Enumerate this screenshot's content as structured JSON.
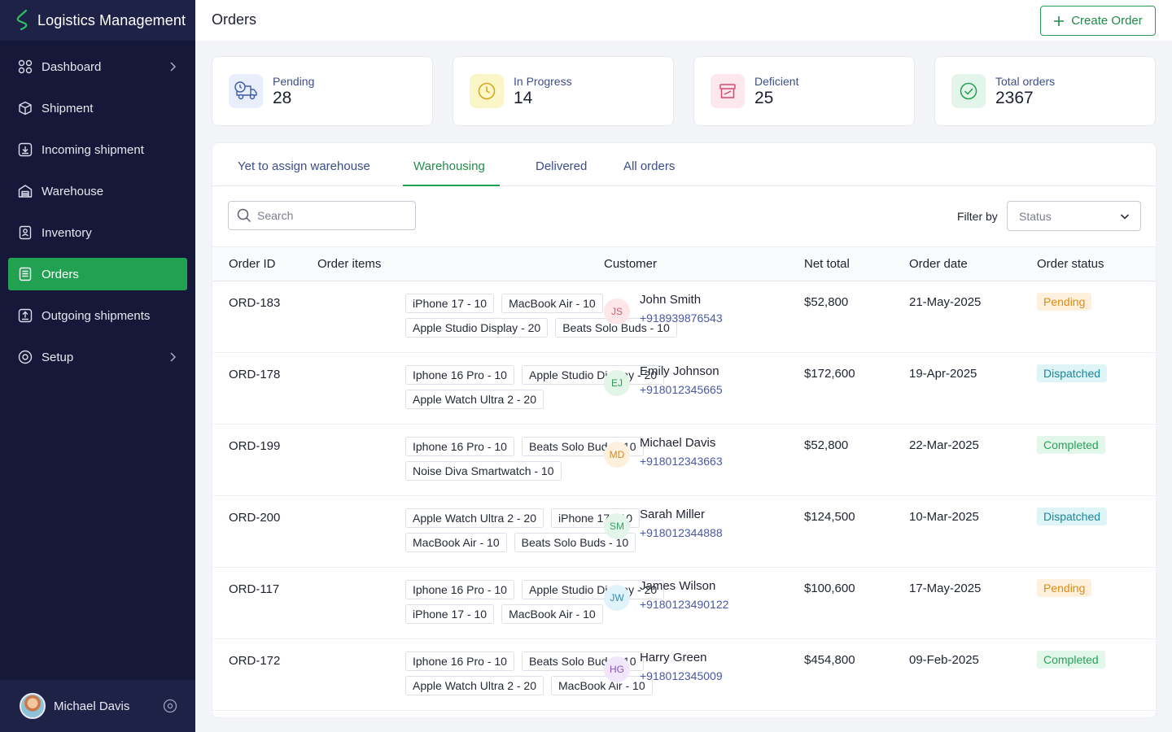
{
  "app": {
    "title": "Logistics Management"
  },
  "sidebar": {
    "items": [
      {
        "label": "Dashboard",
        "icon": "dashboard-grid-icon",
        "has_chevron": true
      },
      {
        "label": "Shipment",
        "icon": "box-icon"
      },
      {
        "label": "Incoming shipment",
        "icon": "inbox-download-icon"
      },
      {
        "label": "Warehouse",
        "icon": "warehouse-icon"
      },
      {
        "label": "Inventory",
        "icon": "inventory-icon"
      },
      {
        "label": "Orders",
        "icon": "orders-list-icon",
        "active": true
      },
      {
        "label": "Outgoing shipments",
        "icon": "outbox-upload-icon"
      },
      {
        "label": "Setup",
        "icon": "setup-gear-icon",
        "has_chevron": true
      }
    ],
    "user": {
      "name": "Michael Davis"
    }
  },
  "header": {
    "title": "Orders",
    "create_label": "Create Order"
  },
  "stats": [
    {
      "label": "Pending",
      "value": "28",
      "icon": "truck-clock-icon",
      "bg": "#e9eefc",
      "color": "#3c5aa8"
    },
    {
      "label": "In Progress",
      "value": "14",
      "icon": "clock-icon",
      "bg": "#fbf6c8",
      "color": "#d3a51b"
    },
    {
      "label": "Deficient",
      "value": "25",
      "icon": "archive-box-icon",
      "bg": "#fde8ee",
      "color": "#d9476c"
    },
    {
      "label": "Total orders",
      "value": "2367",
      "icon": "check-circle-icon",
      "bg": "#e3f5ea",
      "color": "#23a152"
    }
  ],
  "tabs": [
    "Yet to assign warehouse",
    "Warehousing",
    "Delivered",
    "All orders"
  ],
  "active_tab": "Warehousing",
  "toolbar": {
    "search_placeholder": "Search",
    "filter_label": "Filter by",
    "filter_value": "Status"
  },
  "table": {
    "columns": [
      "Order ID",
      "Order items",
      "Customer",
      "Net total",
      "Order date",
      "Order status"
    ],
    "rows": [
      {
        "id": "ORD-183",
        "items": [
          "iPhone 17 - 10",
          "MacBook Air - 10",
          "Apple Studio Display - 20",
          "Beats Solo Buds - 10"
        ],
        "initials": "JS",
        "name": "John Smith",
        "phone": "+918939876543",
        "total": "$52,800",
        "date": "21-May-2025",
        "status": "Pending"
      },
      {
        "id": "ORD-178",
        "items": [
          "Iphone 16 Pro - 10",
          "Apple Studio Display - 20",
          "Apple Watch Ultra 2 - 20"
        ],
        "initials": "EJ",
        "name": "Emily Johnson",
        "phone": "+918012345665",
        "total": "$172,600",
        "date": "19-Apr-2025",
        "status": "Dispatched"
      },
      {
        "id": "ORD-199",
        "items": [
          "Iphone 16 Pro - 10",
          "Beats Solo Buds - 10",
          "Noise Diva Smartwatch - 10"
        ],
        "initials": "MD",
        "name": "Michael Davis",
        "phone": "+918012343663",
        "total": "$52,800",
        "date": "22-Mar-2025",
        "status": "Completed"
      },
      {
        "id": "ORD-200",
        "items": [
          "Apple Watch Ultra 2 - 20",
          "iPhone 17 - 10",
          "MacBook Air - 10",
          "Beats Solo Buds - 10"
        ],
        "initials": "SM",
        "name": "Sarah Miller",
        "phone": "+918012344888",
        "total": "$124,500",
        "date": "10-Mar-2025",
        "status": "Dispatched"
      },
      {
        "id": "ORD-117",
        "items": [
          "Iphone 16 Pro - 10",
          "Apple Studio Display - 20",
          "iPhone 17 - 10",
          "MacBook Air - 10"
        ],
        "initials": "JW",
        "name": "James Wilson",
        "phone": "+9180123490122",
        "total": "$100,600",
        "date": "17-May-2025",
        "status": "Pending"
      },
      {
        "id": "ORD-172",
        "items": [
          "Iphone 16 Pro - 10",
          "Beats Solo Buds - 10",
          "Apple Watch Ultra 2 - 20",
          "MacBook Air - 10"
        ],
        "initials": "HG",
        "name": "Harry Green",
        "phone": "+918012345009",
        "total": "$454,800",
        "date": "09-Feb-2025",
        "status": "Completed"
      }
    ]
  },
  "status_colors": {
    "Pending": {
      "bg": "#fdf1de",
      "fg": "#e08a12"
    },
    "Dispatched": {
      "bg": "#dff4f6",
      "fg": "#17879a"
    },
    "Completed": {
      "bg": "#e3f6ea",
      "fg": "#25a357"
    }
  },
  "initials_colors": {
    "JS": {
      "bg": "#fde6e8",
      "fg": "#d8586c"
    },
    "EJ": {
      "bg": "#e1f6e6",
      "fg": "#2e9a55"
    },
    "MD": {
      "bg": "#fdf0dc",
      "fg": "#d08a2a"
    },
    "SM": {
      "bg": "#e3f5ea",
      "fg": "#36a366"
    },
    "JW": {
      "bg": "#e1f3fa",
      "fg": "#2f8db3"
    },
    "HG": {
      "bg": "#f1e6fb",
      "fg": "#8c52c2"
    }
  }
}
